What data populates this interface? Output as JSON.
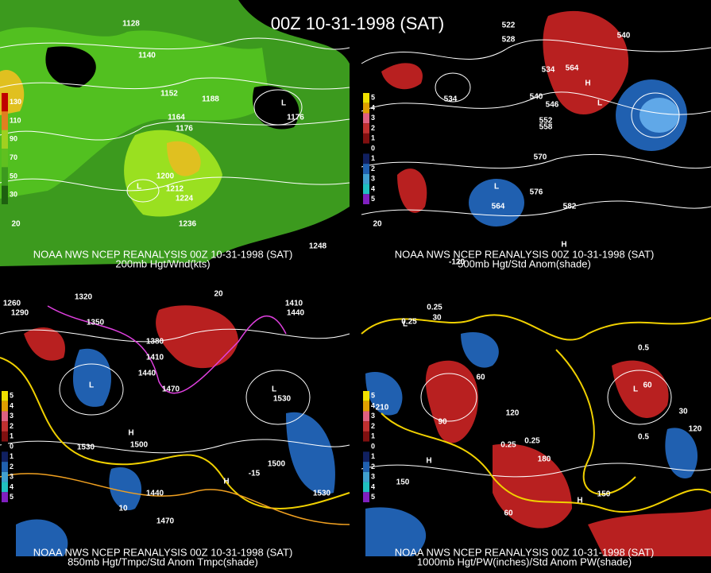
{
  "title": "00Z 10-31-1998 (SAT)",
  "panels": [
    {
      "caption": "NOAA NWS NCEP REANALYSIS 00Z 10-31-1998 (SAT)",
      "subtitle": "200mb Hgt/Wnd(kts)",
      "colorbar": [
        "130",
        "110",
        "90",
        "70",
        "50",
        "30"
      ],
      "labels": [
        "1128",
        "1140",
        "1152",
        "1164",
        "1176",
        "1188",
        "1200",
        "1212",
        "1224",
        "1236",
        "1248",
        "1176",
        "L",
        "L",
        "20"
      ]
    },
    {
      "caption": "NOAA NWS NCEP REANALYSIS 00Z 10-31-1998 (SAT)",
      "subtitle": "500mb Hgt/Std Anom(shade)",
      "colorbar": [
        "5",
        "4",
        "3",
        "2",
        "1",
        "0",
        "1",
        "2",
        "3",
        "4",
        "5"
      ],
      "labels": [
        "522",
        "528",
        "534",
        "540",
        "546",
        "552",
        "558",
        "570",
        "576",
        "582",
        "564",
        "564",
        "540",
        "534",
        "L",
        "L",
        "H",
        "H",
        "-120",
        "20"
      ]
    },
    {
      "caption": "NOAA NWS NCEP REANALYSIS 00Z 10-31-1998 (SAT)",
      "subtitle": "850mb Hgt/Tmpc/Std Anom Tmpc(shade)",
      "colorbar": [
        "5",
        "4",
        "3",
        "2",
        "1",
        "0",
        "1",
        "2",
        "3",
        "4",
        "5"
      ],
      "labels": [
        "1260",
        "1290",
        "1320",
        "1350",
        "1380",
        "1410",
        "1440",
        "1470",
        "1500",
        "1530",
        "1410",
        "1440",
        "1530",
        "1470",
        "1440",
        "1530",
        "1500",
        "20",
        "-15",
        "10",
        "L",
        "L",
        "H",
        "H"
      ]
    },
    {
      "caption": "NOAA NWS NCEP REANALYSIS 00Z 10-31-1998 (SAT)",
      "subtitle": "1000mb Hgt/PW(inches)/Std Anom PW(shade)",
      "colorbar": [
        "5",
        "4",
        "3",
        "2",
        "1",
        "0",
        "1",
        "2",
        "3",
        "4",
        "5"
      ],
      "labels": [
        "0.25",
        "0.25",
        "0.5",
        "0.25",
        "0.25",
        "0.5",
        "30",
        "60",
        "90",
        "120",
        "150",
        "180",
        "210",
        "60",
        "30",
        "120",
        "150",
        "60",
        "L",
        "L",
        "H",
        "H"
      ]
    }
  ]
}
